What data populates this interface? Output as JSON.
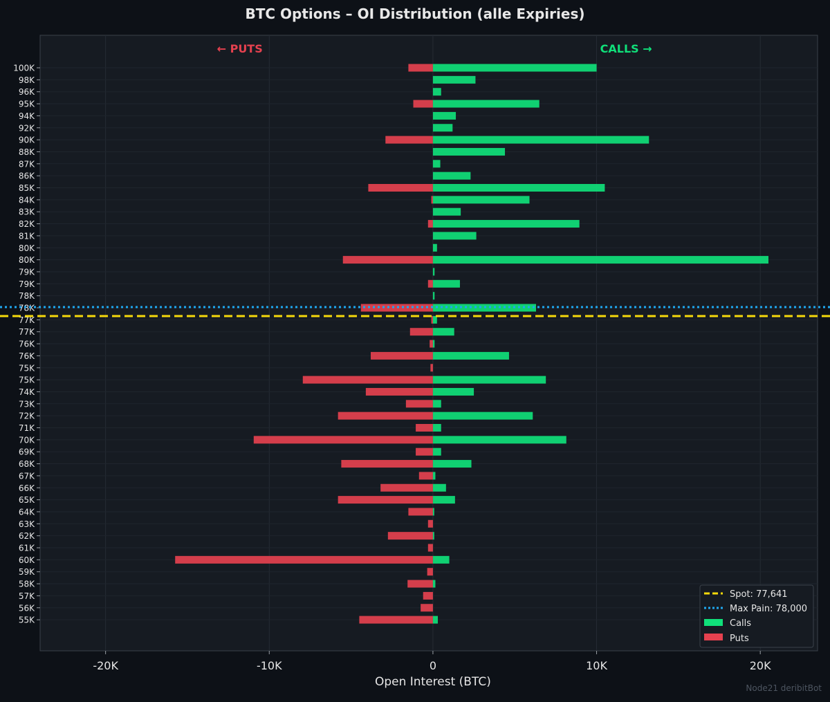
{
  "title": "BTC Options – OI Distribution (alle Expiries)",
  "credit": "Node21 deribitBot",
  "colors": {
    "background": "#0d1117",
    "plot_bg": "#161b22",
    "calls": "#10e07a",
    "puts": "#e5414f",
    "spot": "#f5d90a",
    "max_pain": "#1fa8f0",
    "text": "#e6e6e6"
  },
  "chart_data": {
    "type": "bar",
    "orientation": "horizontal",
    "xlabel": "Open Interest (BTC)",
    "xlim": [
      -24000,
      23500
    ],
    "xticks": [
      -20000,
      -10000,
      0,
      10000,
      20000
    ],
    "xtick_labels": [
      "-20K",
      "-10K",
      "0",
      "10K",
      "20K"
    ],
    "grid": true,
    "annotations": {
      "puts": "← PUTS",
      "calls": "CALLS →"
    },
    "legend_position": "bottom-right",
    "reference_lines": [
      {
        "name": "Spot",
        "label": "Spot: 77,641",
        "value": 77641,
        "style": "dashed",
        "color": "#f5d90a"
      },
      {
        "name": "Max Pain",
        "label": "Max Pain: 78,000",
        "value": 78000,
        "style": "dotted",
        "color": "#1fa8f0"
      }
    ],
    "categories": [
      "100K",
      "98K",
      "96K",
      "95K",
      "94K",
      "92K",
      "90K",
      "88K",
      "87K",
      "86K",
      "85K",
      "84K",
      "83K",
      "82K",
      "81K",
      "80K",
      "80K",
      "79K",
      "79K",
      "78K",
      "78K",
      "77K",
      "77K",
      "76K",
      "76K",
      "75K",
      "75K",
      "74K",
      "73K",
      "72K",
      "71K",
      "70K",
      "69K",
      "68K",
      "67K",
      "66K",
      "65K",
      "64K",
      "63K",
      "62K",
      "61K",
      "60K",
      "59K",
      "58K",
      "57K",
      "56K",
      "55K"
    ],
    "series": [
      {
        "name": "Calls",
        "values": [
          10000,
          2600,
          500,
          6500,
          1400,
          1200,
          13200,
          4400,
          450,
          2300,
          10500,
          5900,
          1700,
          8950,
          2650,
          250,
          20500,
          100,
          1650,
          100,
          6300,
          250,
          1300,
          100,
          4650,
          0,
          6900,
          2500,
          500,
          6100,
          500,
          8150,
          500,
          2350,
          150,
          800,
          1350,
          80,
          0,
          80,
          0,
          1000,
          0,
          150,
          0,
          0,
          300
        ]
      },
      {
        "name": "Puts",
        "values": [
          1500,
          0,
          0,
          1200,
          0,
          0,
          2900,
          0,
          0,
          0,
          3950,
          100,
          0,
          300,
          0,
          0,
          5500,
          0,
          300,
          0,
          4400,
          100,
          1400,
          200,
          3800,
          150,
          7950,
          4100,
          1650,
          5800,
          1050,
          10950,
          1050,
          5600,
          850,
          3200,
          5800,
          1500,
          300,
          2750,
          300,
          15750,
          350,
          1550,
          600,
          750,
          4500
        ]
      }
    ]
  }
}
